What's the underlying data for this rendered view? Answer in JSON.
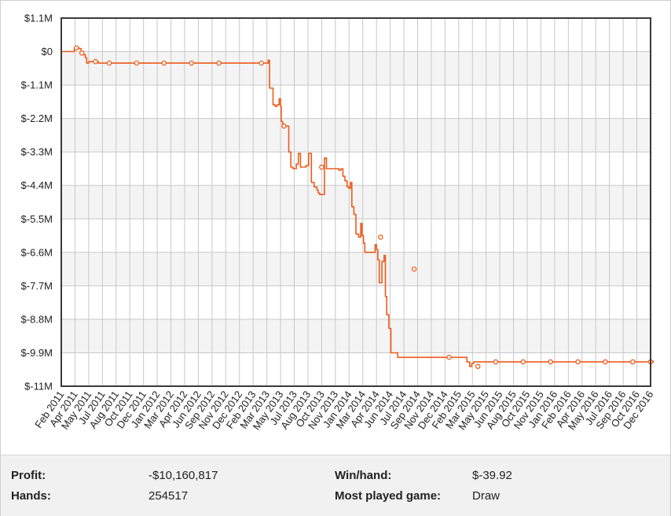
{
  "chart_data": {
    "type": "line",
    "title": "",
    "xlabel": "",
    "ylabel": "",
    "line_color": "#ef5a1a",
    "grid": true,
    "ylim": [
      -11000000,
      1100000
    ],
    "y_ticks": [
      1100000,
      0,
      -1100000,
      -2200000,
      -3300000,
      -4400000,
      -5500000,
      -6600000,
      -7700000,
      -8800000,
      -9900000,
      -11000000
    ],
    "y_tick_labels": [
      "$1.1M",
      "$0",
      "$-1.1M",
      "$-2.2M",
      "$-3.3M",
      "$-4.4M",
      "$-5.5M",
      "$-6.6M",
      "$-7.7M",
      "$-8.8M",
      "$-9.9M",
      "$-11M"
    ],
    "x_tick_labels": [
      "Feb 2011",
      "Apr 2011",
      "May 2011",
      "Jul 2011",
      "Aug 2011",
      "Oct 2011",
      "Dec 2011",
      "Jan 2012",
      "Mar 2012",
      "Apr 2012",
      "Jun 2012",
      "Sep 2012",
      "Nov 2012",
      "Dec 2012",
      "Feb 2013",
      "Mar 2013",
      "May 2013",
      "Jul 2013",
      "Aug 2013",
      "Oct 2013",
      "Nov 2013",
      "Jan 2014",
      "Mar 2014",
      "Apr 2014",
      "Jun 2014",
      "Jul 2014",
      "Sep 2014",
      "Nov 2014",
      "Dec 2014",
      "Feb 2015",
      "Mar 2015",
      "May 2015",
      "Jun 2015",
      "Aug 2015",
      "Oct 2015",
      "Nov 2015",
      "Jan 2016",
      "Feb 2016",
      "Apr 2016",
      "May 2016",
      "Jul 2016",
      "Sep 2016",
      "Oct 2016",
      "Dec 2016"
    ],
    "series": [
      {
        "x": [
          0,
          0.6,
          0.95,
          1.1,
          1.3,
          1.45,
          1.6,
          1.75,
          1.85,
          2.0,
          2.4,
          2.7,
          3.0,
          4.0,
          6.0,
          8.0,
          10.0,
          12.0,
          14.0,
          14.9,
          15.1,
          15.2,
          15.35,
          15.45,
          15.6,
          15.75,
          15.9,
          16.0,
          16.05,
          16.15,
          16.25,
          16.4,
          16.6,
          16.75,
          16.9,
          17.05,
          17.15,
          17.3,
          17.45,
          17.6,
          17.7,
          17.85,
          17.9,
          18.05,
          18.25,
          18.45,
          18.55,
          18.65,
          18.75,
          18.85,
          18.95,
          19.05,
          19.2,
          19.35,
          19.45,
          19.6,
          19.8,
          19.95,
          20.1,
          20.25,
          20.4,
          20.55,
          20.7,
          20.85,
          21.0,
          21.1,
          21.2,
          21.35,
          21.5,
          21.7,
          21.85,
          21.95,
          22.05,
          22.15,
          22.25,
          22.35,
          22.45,
          22.6,
          22.7,
          22.8,
          22.9,
          23.0,
          23.1,
          23.2,
          23.4,
          23.55,
          23.65,
          23.75,
          23.9,
          24.05,
          24.2,
          24.35,
          24.45,
          24.55,
          24.65,
          24.75,
          24.85,
          24.9,
          25.0,
          25.05,
          25.15,
          25.2,
          25.3,
          25.4,
          25.5,
          25.6,
          25.7,
          25.8,
          26.0,
          26.3,
          26.5,
          26.7,
          27.0,
          27.5,
          28.0,
          28.5,
          29.0,
          29.6,
          29.8,
          29.95,
          30.1,
          30.3,
          30.5,
          31.0,
          32.0,
          33.0,
          34.0,
          35.0,
          36.0,
          37.0,
          38.0,
          39.0,
          40.0,
          41.0,
          42.0,
          43.0,
          43.2
        ],
        "y": [
          0,
          0,
          100000,
          120000,
          100000,
          0,
          -100000,
          -200000,
          -380000,
          -330000,
          -330000,
          -380000,
          -380000,
          -380000,
          -380000,
          -380000,
          -380000,
          -380000,
          -380000,
          -380000,
          -280000,
          -1200000,
          -1200000,
          -1750000,
          -1800000,
          -1750000,
          -1550000,
          -1800000,
          -2300000,
          -2450000,
          -2450000,
          -2450000,
          -3300000,
          -3800000,
          -3850000,
          -3850000,
          -3700000,
          -3350000,
          -3800000,
          -3800000,
          -3800000,
          -3750000,
          -3750000,
          -3350000,
          -4300000,
          -4450000,
          -4450000,
          -4550000,
          -4650000,
          -4700000,
          -4700000,
          -4700000,
          -3500000,
          -3850000,
          -3850000,
          -3850000,
          -3850000,
          -3850000,
          -3850000,
          -3900000,
          -3850000,
          -4100000,
          -4250000,
          -4450000,
          -4500000,
          -4300000,
          -5100000,
          -5350000,
          -6000000,
          -6100000,
          -5650000,
          -6050000,
          -6300000,
          -6600000,
          -6600000,
          -6600000,
          -6600000,
          -6600000,
          -6600000,
          -6600000,
          -6350000,
          -6500000,
          -6850000,
          -7600000,
          -6900000,
          -6700000,
          -8050000,
          -8650000,
          -9100000,
          -9900000,
          -9900000,
          -9900000,
          -9900000,
          -10050000,
          -10050000,
          -10050000,
          -10050000,
          -10050000,
          -10050000,
          -10050000,
          -10050000,
          -10050000,
          -10050000,
          -10050000,
          -10050000,
          -10050000,
          -10050000,
          -10050000,
          -10050000,
          -10050000,
          -10050000,
          -10050000,
          -10050000,
          -10050000,
          -10050000,
          -10050000,
          -10050000,
          -10200000,
          -10350000,
          -10250000,
          -10200000,
          -10200000,
          -10200000,
          -10200000,
          -10200000,
          -10200000,
          -10200000,
          -10200000,
          -10200000,
          -10200000,
          -10200000,
          -10200000,
          -10200000,
          -10200000,
          -10200000,
          -10200000,
          -10160817
        ]
      }
    ],
    "markers": [
      {
        "x": 1.1,
        "y": 120000
      },
      {
        "x": 1.5,
        "y": -50000
      },
      {
        "x": 2.5,
        "y": -330000
      },
      {
        "x": 3.5,
        "y": -380000
      },
      {
        "x": 5.5,
        "y": -380000
      },
      {
        "x": 7.5,
        "y": -380000
      },
      {
        "x": 9.5,
        "y": -380000
      },
      {
        "x": 11.5,
        "y": -380000
      },
      {
        "x": 14.6,
        "y": -380000
      },
      {
        "x": 16.25,
        "y": -2450000
      },
      {
        "x": 19.0,
        "y": -3800000
      },
      {
        "x": 23.3,
        "y": -6100000
      },
      {
        "x": 25.75,
        "y": -7150000
      },
      {
        "x": 28.3,
        "y": -10050000
      },
      {
        "x": 30.4,
        "y": -10350000
      },
      {
        "x": 31.7,
        "y": -10200000
      },
      {
        "x": 33.7,
        "y": -10200000
      },
      {
        "x": 35.7,
        "y": -10200000
      },
      {
        "x": 37.7,
        "y": -10200000
      },
      {
        "x": 39.7,
        "y": -10200000
      },
      {
        "x": 41.7,
        "y": -10200000
      },
      {
        "x": 43.0,
        "y": -10200000
      }
    ]
  },
  "stats": {
    "profit_label": "Profit:",
    "profit_value": "-$10,160,817",
    "hands_label": "Hands:",
    "hands_value": "254517",
    "winhand_label": "Win/hand:",
    "winhand_value": "$-39.92",
    "game_label": "Most played game:",
    "game_value": "Draw"
  }
}
